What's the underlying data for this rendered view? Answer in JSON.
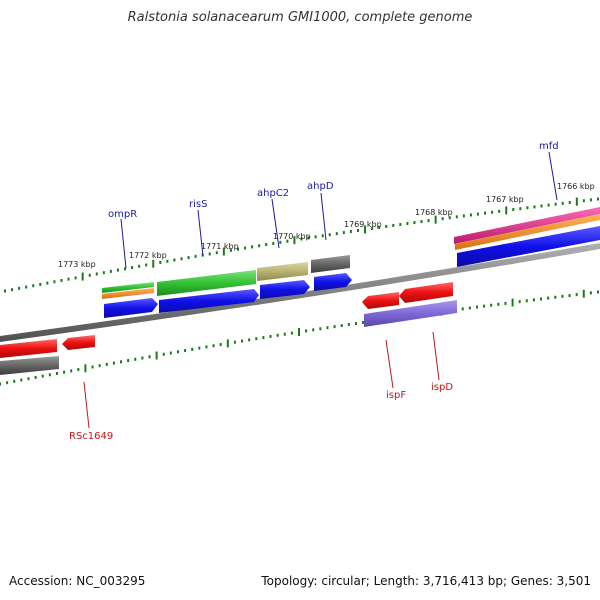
{
  "title": "Ralstonia solanacearum GMI1000, complete genome",
  "footer": {
    "accession": "Accession: NC_003295",
    "summary": "Topology: circular; Length: 3,716,413 bp; Genes: 3,501"
  },
  "scale_ticks": [
    "1773 kbp",
    "1772 kbp",
    "1771 kbp",
    "1770 kbp",
    "1769 kbp",
    "1768 kbp",
    "1767 kbp",
    "1766 kbp"
  ],
  "gene_labels_forward": [
    "ompR",
    "risS",
    "ahpC2",
    "ahpD",
    "mfd"
  ],
  "gene_labels_reverse": [
    "RSc1649",
    "ispF",
    "ispD"
  ],
  "colors": {
    "forward_label": "#1a1aa0",
    "reverse_label": "#c01818",
    "tick": "#1a7a1a",
    "backbone": "#808080",
    "blue": "#1010e8",
    "green": "#33c233",
    "orange": "#f08c1a",
    "red": "#ee1111",
    "gray": "#666666",
    "khaki": "#b8b272",
    "purple": "#7f68d6",
    "magenta": "#e8288f"
  }
}
